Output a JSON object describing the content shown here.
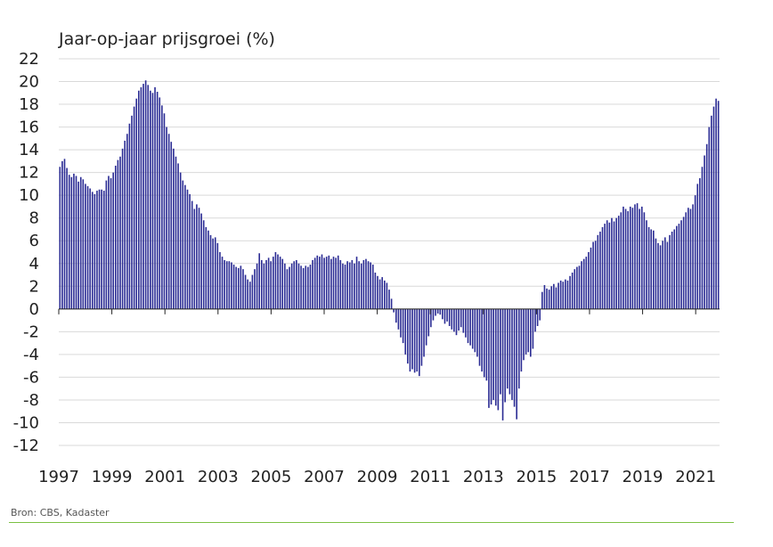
{
  "chart_data": {
    "type": "bar",
    "title": "Jaar-op-jaar prijsgroei (%)",
    "ylim": [
      -12,
      22
    ],
    "yticks": [
      -12,
      -10,
      -8,
      -6,
      -4,
      -2,
      0,
      2,
      4,
      6,
      8,
      10,
      12,
      14,
      16,
      18,
      20,
      22
    ],
    "xlim": [
      1997,
      2021.9
    ],
    "xticks": [
      1997,
      1999,
      2001,
      2003,
      2005,
      2007,
      2009,
      2011,
      2013,
      2015,
      2017,
      2019,
      2021
    ],
    "grid": true,
    "bar_color": "#2b2c94",
    "x_start": "1997-01",
    "frequency": "monthly",
    "series": [
      {
        "values": [
          12.5,
          13.0,
          13.2,
          12.4,
          11.8,
          11.6,
          11.9,
          11.7,
          11.2,
          11.6,
          11.4,
          11.0,
          10.8,
          10.6,
          10.3,
          10.1,
          10.4,
          10.5,
          10.5,
          10.4,
          11.3,
          11.7,
          11.5,
          12.0,
          12.6,
          13.1,
          13.4,
          14.1,
          14.8,
          15.4,
          16.3,
          17.0,
          17.8,
          18.5,
          19.2,
          19.5,
          19.8,
          20.1,
          19.7,
          19.2,
          19.0,
          19.5,
          19.1,
          18.6,
          17.9,
          17.2,
          16.0,
          15.4,
          14.7,
          14.1,
          13.4,
          12.8,
          12.0,
          11.3,
          10.9,
          10.5,
          10.1,
          9.5,
          8.8,
          9.2,
          8.9,
          8.4,
          7.8,
          7.2,
          6.9,
          6.5,
          6.2,
          6.3,
          5.8,
          5.0,
          4.6,
          4.3,
          4.2,
          4.2,
          4.1,
          3.9,
          3.7,
          3.6,
          3.8,
          3.5,
          3.0,
          2.6,
          2.4,
          3.0,
          3.5,
          4.0,
          4.9,
          4.3,
          4.0,
          4.3,
          4.5,
          4.2,
          4.6,
          5.0,
          4.8,
          4.6,
          4.4,
          4.0,
          3.5,
          3.7,
          4.0,
          4.2,
          4.3,
          4.0,
          3.8,
          3.6,
          3.8,
          3.7,
          3.9,
          4.3,
          4.5,
          4.7,
          4.6,
          4.8,
          4.5,
          4.6,
          4.7,
          4.4,
          4.6,
          4.5,
          4.7,
          4.3,
          4.0,
          3.9,
          4.2,
          4.1,
          4.3,
          4.0,
          4.6,
          4.2,
          4.0,
          4.3,
          4.4,
          4.2,
          4.1,
          3.9,
          3.2,
          2.9,
          2.6,
          2.8,
          2.5,
          2.3,
          1.7,
          0.9,
          -0.3,
          -1.2,
          -1.8,
          -2.5,
          -3.0,
          -4.0,
          -4.8,
          -5.5,
          -5.3,
          -5.6,
          -5.5,
          -5.9,
          -5.0,
          -4.2,
          -3.2,
          -2.4,
          -1.6,
          -1.0,
          -0.6,
          -0.4,
          -0.5,
          -0.9,
          -1.3,
          -1.1,
          -1.5,
          -1.8,
          -2.0,
          -2.3,
          -1.9,
          -1.6,
          -2.1,
          -2.5,
          -3.0,
          -3.2,
          -3.5,
          -3.8,
          -4.2,
          -5.0,
          -5.5,
          -6.0,
          -6.3,
          -8.7,
          -8.4,
          -8.0,
          -8.5,
          -8.9,
          -7.5,
          -9.8,
          -8.2,
          -7.0,
          -7.5,
          -8.0,
          -8.6,
          -9.7,
          -7.0,
          -5.5,
          -4.5,
          -4.0,
          -3.8,
          -4.2,
          -3.5,
          -2.0,
          -1.5,
          -1.0,
          1.5,
          2.1,
          1.8,
          1.7,
          2.0,
          2.2,
          1.9,
          2.3,
          2.5,
          2.4,
          2.6,
          2.5,
          2.9,
          3.2,
          3.5,
          3.7,
          3.8,
          4.2,
          4.4,
          4.6,
          5.0,
          5.4,
          5.9,
          6.0,
          6.5,
          6.8,
          7.2,
          7.5,
          7.8,
          7.6,
          8.0,
          7.7,
          8.0,
          8.2,
          8.5,
          9.0,
          8.8,
          8.6,
          9.0,
          8.9,
          9.2,
          9.3,
          8.8,
          9.0,
          8.5,
          7.8,
          7.2,
          7.0,
          6.9,
          6.2,
          5.8,
          5.6,
          6.0,
          6.3,
          5.9,
          6.5,
          6.8,
          7.0,
          7.3,
          7.5,
          7.8,
          8.1,
          8.5,
          8.9,
          8.8,
          9.2,
          10.0,
          11.0,
          11.5,
          12.5,
          13.5,
          14.5,
          16.0,
          17.0,
          17.8,
          18.5,
          18.3
        ]
      }
    ]
  },
  "source_text": "Bron: CBS, Kadaster"
}
